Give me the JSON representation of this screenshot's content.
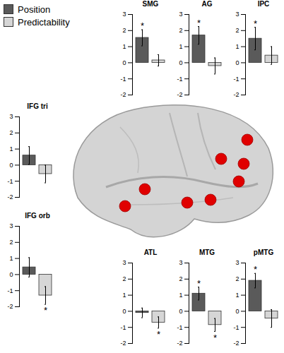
{
  "chart_data": [
    {
      "type": "bar",
      "title": "SMG",
      "legend": "upper left",
      "tick_labels": "y",
      "ylim": [
        -2,
        3
      ],
      "yticks": [
        -2,
        -1,
        0,
        1,
        2,
        3
      ],
      "series": [
        {
          "name": "Position",
          "color": "#5a5a5a",
          "values": [
            1.55
          ],
          "errors": [
            0.5
          ],
          "annotations": [
            "*"
          ]
        },
        {
          "name": "Predictability",
          "color": "#d6d6d6",
          "values": [
            0.15
          ],
          "errors": [
            0.35
          ],
          "annotations": [
            null
          ]
        }
      ]
    },
    {
      "type": "bar",
      "title": "AG",
      "tick_labels": "y",
      "ylim": [
        -2,
        3
      ],
      "yticks": [
        -2,
        -1,
        0,
        1,
        2,
        3
      ],
      "series": [
        {
          "name": "Position",
          "color": "#5a5a5a",
          "values": [
            1.7
          ],
          "errors": [
            0.55
          ],
          "annotations": [
            "*"
          ]
        },
        {
          "name": "Predictability",
          "color": "#d6d6d6",
          "values": [
            -0.2
          ],
          "errors": [
            0.5
          ],
          "annotations": [
            null
          ]
        }
      ]
    },
    {
      "type": "bar",
      "title": "IPC",
      "tick_labels": "y",
      "ylim": [
        -2,
        3
      ],
      "yticks": [
        -2,
        -1,
        0,
        1,
        2,
        3
      ],
      "series": [
        {
          "name": "Position",
          "color": "#5a5a5a",
          "values": [
            1.5
          ],
          "errors": [
            0.7
          ],
          "annotations": [
            "*"
          ]
        },
        {
          "name": "Predictability",
          "color": "#d6d6d6",
          "values": [
            0.45
          ],
          "errors": [
            0.55
          ],
          "annotations": [
            null
          ]
        }
      ]
    },
    {
      "type": "bar",
      "title": "IFG tri",
      "tick_labels": "y",
      "ylim": [
        -2,
        3
      ],
      "yticks": [
        -2,
        -1,
        0,
        1,
        2,
        3
      ],
      "series": [
        {
          "name": "Position",
          "color": "#5a5a5a",
          "values": [
            0.6
          ],
          "errors": [
            0.55
          ],
          "annotations": [
            null
          ]
        },
        {
          "name": "Predictability",
          "color": "#d6d6d6",
          "values": [
            -0.55
          ],
          "errors": [
            0.55
          ],
          "annotations": [
            null
          ]
        }
      ]
    },
    {
      "type": "bar",
      "title": "IFG orb",
      "tick_labels": "y",
      "ylim": [
        -2,
        3
      ],
      "yticks": [
        -2,
        -1,
        0,
        1,
        2,
        3
      ],
      "series": [
        {
          "name": "Position",
          "color": "#5a5a5a",
          "values": [
            0.45
          ],
          "errors": [
            0.6
          ],
          "annotations": [
            null
          ]
        },
        {
          "name": "Predictability",
          "color": "#d6d6d6",
          "values": [
            -1.3
          ],
          "errors": [
            0.55
          ],
          "annotations": [
            "*"
          ]
        }
      ]
    },
    {
      "type": "bar",
      "title": "ATL",
      "tick_labels": "y",
      "ylim": [
        -2,
        3
      ],
      "yticks": [
        -2,
        -1,
        0,
        1,
        2,
        3
      ],
      "series": [
        {
          "name": "Position",
          "color": "#5a5a5a",
          "values": [
            -0.1
          ],
          "errors": [
            0.3
          ],
          "annotations": [
            null
          ]
        },
        {
          "name": "Predictability",
          "color": "#d6d6d6",
          "values": [
            -0.7
          ],
          "errors": [
            0.35
          ],
          "annotations": [
            "*"
          ]
        }
      ]
    },
    {
      "type": "bar",
      "title": "MTG",
      "tick_labels": "y",
      "ylim": [
        -2,
        3
      ],
      "yticks": [
        -2,
        -1,
        0,
        1,
        2,
        3
      ],
      "series": [
        {
          "name": "Position",
          "color": "#5a5a5a",
          "values": [
            1.1
          ],
          "errors": [
            0.4
          ],
          "annotations": [
            "*"
          ]
        },
        {
          "name": "Predictability",
          "color": "#d6d6d6",
          "values": [
            -0.85
          ],
          "errors": [
            0.4
          ],
          "annotations": [
            "*"
          ]
        }
      ]
    },
    {
      "type": "bar",
      "title": "pMTG",
      "tick_labels": "y",
      "ylim": [
        -2,
        3
      ],
      "yticks": [
        -2,
        -1,
        0,
        1,
        2,
        3
      ],
      "series": [
        {
          "name": "Position",
          "color": "#5a5a5a",
          "values": [
            1.9
          ],
          "errors": [
            0.45
          ],
          "annotations": [
            "*"
          ]
        },
        {
          "name": "Predictability",
          "color": "#d6d6d6",
          "values": [
            -0.45
          ],
          "errors": [
            0.55
          ],
          "annotations": [
            null
          ]
        }
      ]
    }
  ]
}
